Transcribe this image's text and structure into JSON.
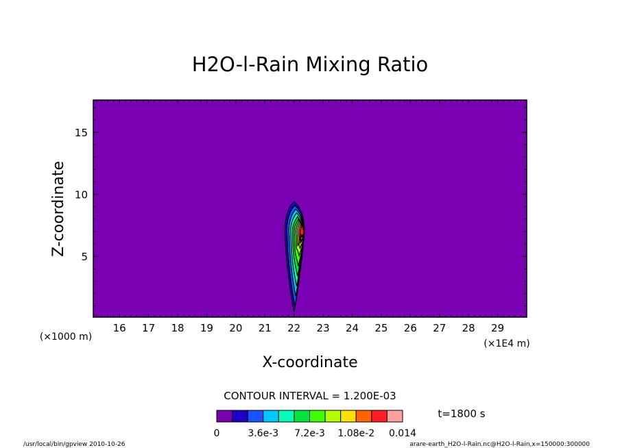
{
  "chart_data": {
    "type": "heatmap",
    "title": "H2O-l-Rain Mixing Ratio",
    "xlabel": "X-coordinate",
    "ylabel": "Z-coordinate",
    "x_unit": "(×1E4 m)",
    "y_unit": "(×1000 m)",
    "xlim": [
      15.1,
      30.0
    ],
    "ylim": [
      0.1,
      17.6
    ],
    "x_ticks": [
      "16",
      "17",
      "18",
      "19",
      "20",
      "21",
      "22",
      "23",
      "24",
      "25",
      "26",
      "27",
      "28",
      "29"
    ],
    "y_ticks": [
      "5",
      "10",
      "15"
    ],
    "contour_interval_text": "CONTOUR INTERVAL = 1.200E-03",
    "time_text": "t=1800 s",
    "colorbar": {
      "colors": [
        "#7a00b4",
        "#1c00c4",
        "#1a52ff",
        "#00c8ff",
        "#00ffb4",
        "#00e640",
        "#3cff00",
        "#b4ff00",
        "#ffe000",
        "#ff6400",
        "#ff1e28",
        "#ffa0a0"
      ],
      "labels": [
        "0",
        "3.6e-3",
        "7.2e-3",
        "1.08e-2",
        "0.014"
      ],
      "label_positions": [
        0,
        3,
        6,
        9,
        12
      ]
    },
    "rain_core": {
      "x_center": 22.0,
      "z_bottom": 0.5,
      "z_top": 9.4,
      "z_peak": 7.0,
      "max_value": 0.0136
    },
    "background_value": 0
  },
  "footer": {
    "left": "/usr/local/bin/gpview   2010-10-26",
    "right": "arare-earth_H2O-l-Rain.nc@H2O-l-Rain,x=150000:300000"
  }
}
